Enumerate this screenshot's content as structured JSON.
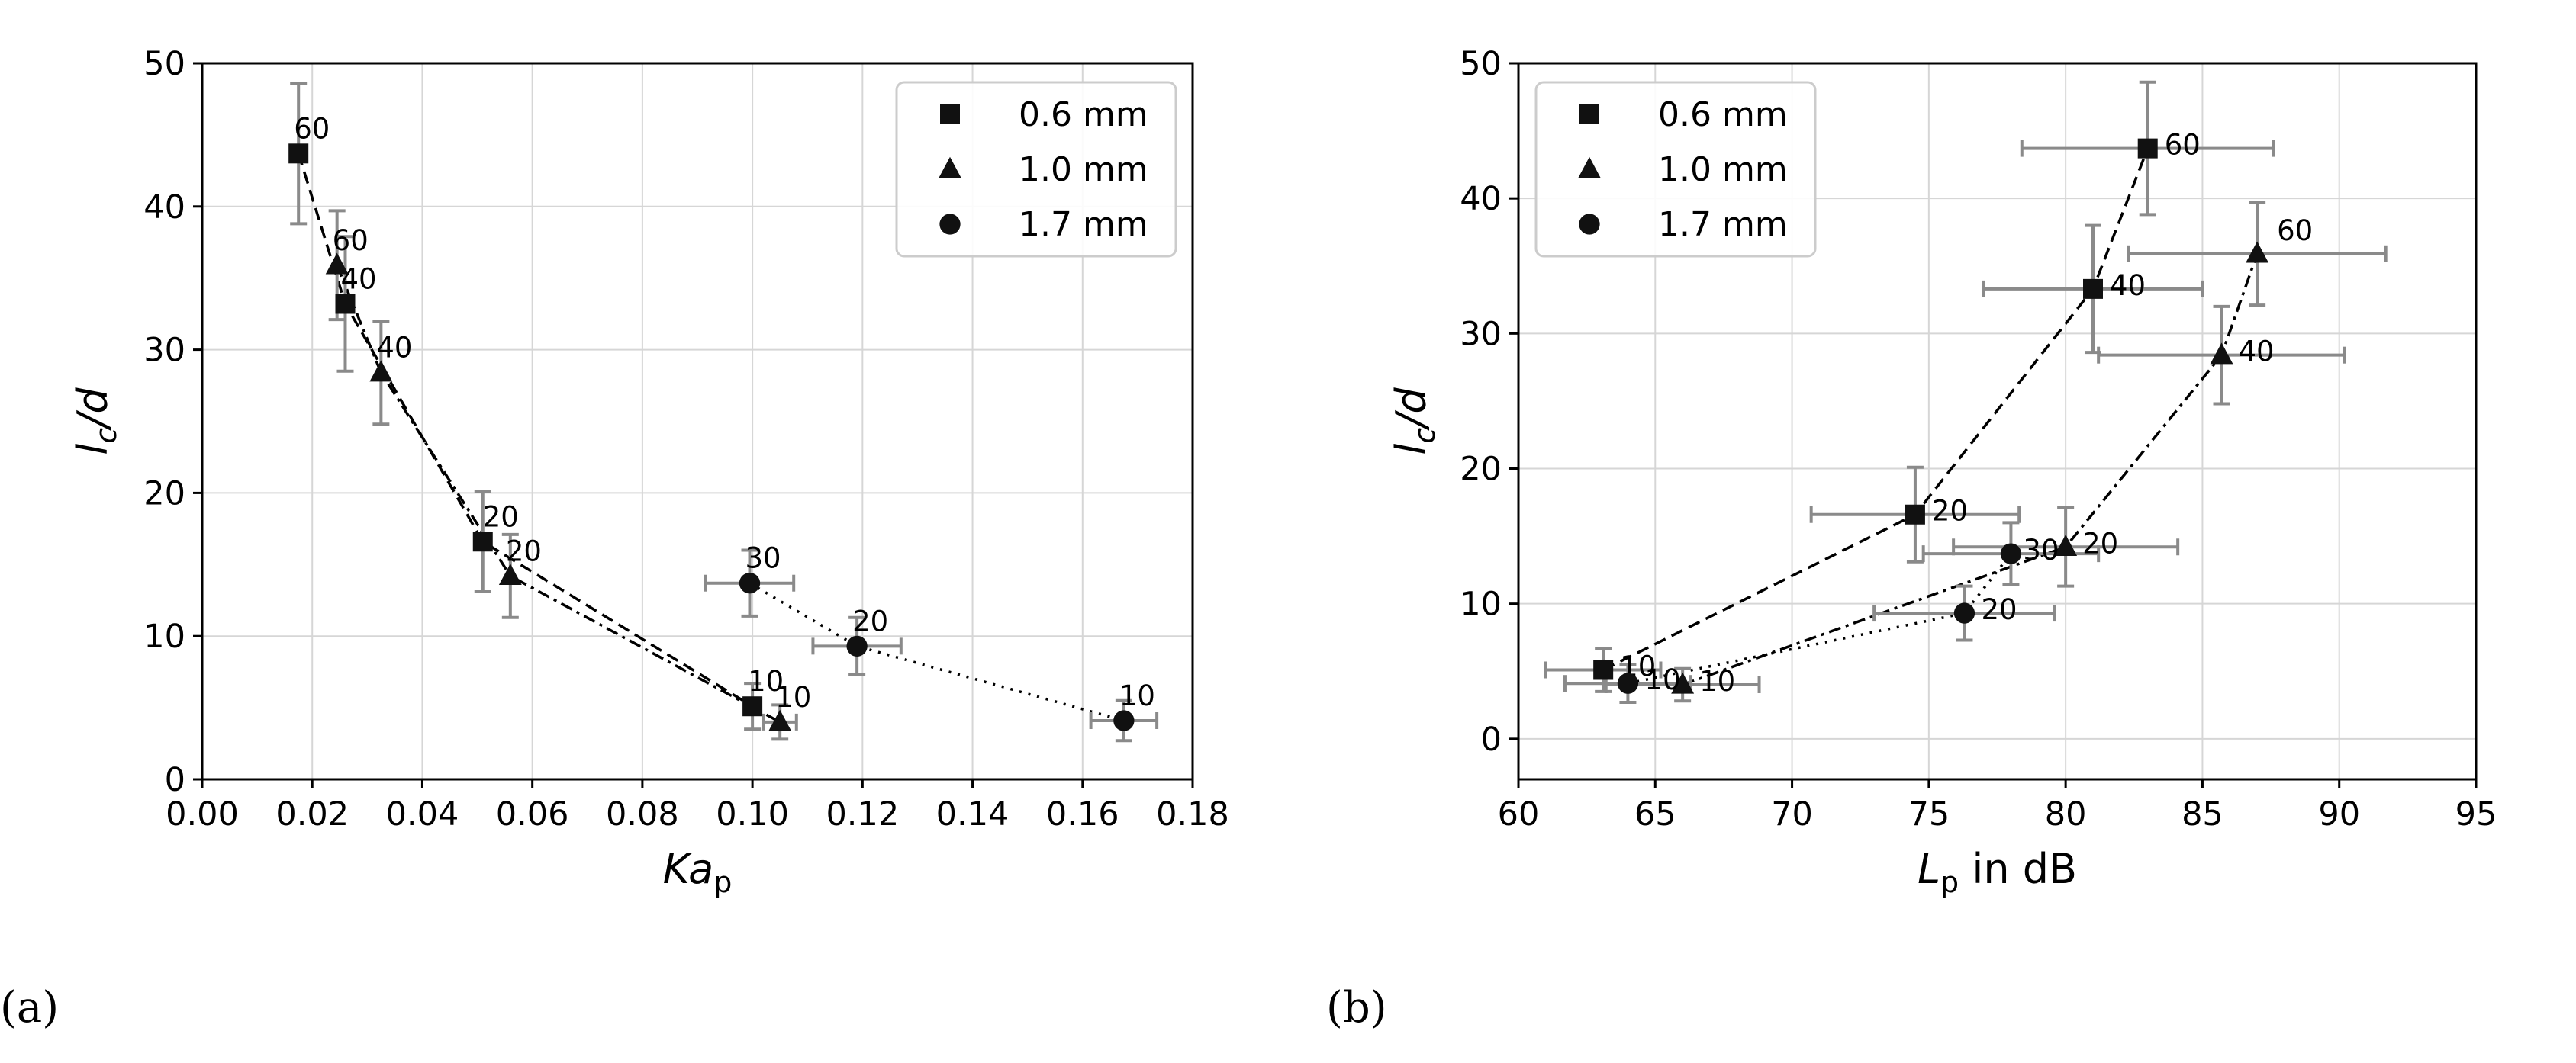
{
  "colors": {
    "marker": "#111111",
    "errorbar": "#8a8a8a",
    "grid": "#d6d6d6",
    "line": "#000000"
  },
  "marker_icons": {
    "0.6 mm": "square-icon",
    "1.0 mm": "triangle-icon",
    "1.7 mm": "circle-icon"
  },
  "chart_data": [
    {
      "panel_label": "(a)",
      "type": "scatter",
      "title": "",
      "xlabel": "Ka_p",
      "ylabel": "l_c/d",
      "xlim": [
        0,
        0.18
      ],
      "ylim": [
        0,
        50
      ],
      "xticks": [
        0,
        0.02,
        0.04,
        0.06,
        0.08,
        0.1,
        0.12,
        0.14,
        0.16,
        0.18
      ],
      "xtick_labels": [
        "0.00",
        "0.02",
        "0.04",
        "0.06",
        "0.08",
        "0.10",
        "0.12",
        "0.14",
        "0.16",
        "0.18"
      ],
      "yticks": [
        0,
        10,
        20,
        30,
        40,
        50
      ],
      "ytick_labels": [
        "0",
        "10",
        "20",
        "30",
        "40",
        "50"
      ],
      "grid": true,
      "legend": {
        "placement": "top-right",
        "entries": [
          "0.6 mm",
          "1.0 mm",
          "1.7 mm"
        ]
      },
      "series": [
        {
          "name": "0.6 mm",
          "marker": "square",
          "linestyle": "dashed",
          "points": [
            {
              "x": 0.0175,
              "y": 43.7,
              "yerr": 4.9,
              "xerr": 0,
              "label": "60"
            },
            {
              "x": 0.026,
              "y": 33.2,
              "yerr": 4.7,
              "xerr": 0,
              "label": "40"
            },
            {
              "x": 0.051,
              "y": 16.6,
              "yerr": 3.5,
              "xerr": 0,
              "label": "20"
            },
            {
              "x": 0.1,
              "y": 5.1,
              "yerr": 1.6,
              "xerr": 0,
              "label": "10"
            }
          ]
        },
        {
          "name": "1.0 mm",
          "marker": "triangle",
          "linestyle": "dashdot",
          "points": [
            {
              "x": 0.0245,
              "y": 35.9,
              "yerr": 3.8,
              "xerr": 0,
              "label": "60"
            },
            {
              "x": 0.0325,
              "y": 28.4,
              "yerr": 3.6,
              "xerr": 0,
              "label": "40"
            },
            {
              "x": 0.056,
              "y": 14.2,
              "yerr": 2.9,
              "xerr": 0,
              "label": "20"
            },
            {
              "x": 0.105,
              "y": 4.0,
              "yerr": 1.2,
              "xerr": 0.003,
              "label": "10"
            }
          ]
        },
        {
          "name": "1.7 mm",
          "marker": "circle",
          "linestyle": "dotted",
          "points": [
            {
              "x": 0.0995,
              "y": 13.7,
              "yerr": 2.3,
              "xerr": 0.008,
              "label": "30"
            },
            {
              "x": 0.119,
              "y": 9.3,
              "yerr": 2.0,
              "xerr": 0.008,
              "label": "20"
            },
            {
              "x": 0.1675,
              "y": 4.1,
              "yerr": 1.4,
              "xerr": 0.006,
              "label": "10"
            }
          ]
        }
      ]
    },
    {
      "panel_label": "(b)",
      "type": "scatter",
      "title": "",
      "xlabel": "L_p in dB",
      "ylabel": "l_c/d",
      "xlim": [
        60,
        95
      ],
      "ylim": [
        -3,
        50
      ],
      "xticks": [
        60,
        65,
        70,
        75,
        80,
        85,
        90,
        95
      ],
      "xtick_labels": [
        "60",
        "65",
        "70",
        "75",
        "80",
        "85",
        "90",
        "95"
      ],
      "yticks": [
        0,
        10,
        20,
        30,
        40,
        50
      ],
      "ytick_labels": [
        "0",
        "10",
        "20",
        "30",
        "40",
        "50"
      ],
      "grid": true,
      "legend": {
        "placement": "top-left",
        "entries": [
          "0.6 mm",
          "1.0 mm",
          "1.7 mm"
        ]
      },
      "series": [
        {
          "name": "0.6 mm",
          "marker": "square",
          "linestyle": "dashed",
          "points": [
            {
              "x": 63.1,
              "y": 5.1,
              "yerr": 1.6,
              "xerr": 2.1,
              "label": "10"
            },
            {
              "x": 74.5,
              "y": 16.6,
              "yerr": 3.5,
              "xerr": 3.8,
              "label": "20"
            },
            {
              "x": 81.0,
              "y": 33.3,
              "yerr": 4.7,
              "xerr": 4.0,
              "label": "40"
            },
            {
              "x": 83.0,
              "y": 43.7,
              "yerr": 4.9,
              "xerr": 4.6,
              "label": "60"
            }
          ]
        },
        {
          "name": "1.0 mm",
          "marker": "triangle",
          "linestyle": "dashdot",
          "points": [
            {
              "x": 66.0,
              "y": 4.0,
              "yerr": 1.2,
              "xerr": 2.8,
              "label": "10"
            },
            {
              "x": 80.0,
              "y": 14.2,
              "yerr": 2.9,
              "xerr": 4.1,
              "label": "20"
            },
            {
              "x": 85.7,
              "y": 28.4,
              "yerr": 3.6,
              "xerr": 4.5,
              "label": "40"
            },
            {
              "x": 87.0,
              "y": 35.9,
              "yerr": 3.8,
              "xerr": 4.7,
              "label": "60"
            }
          ]
        },
        {
          "name": "1.7 mm",
          "marker": "circle",
          "linestyle": "dotted",
          "points": [
            {
              "x": 64.0,
              "y": 4.1,
              "yerr": 1.4,
              "xerr": 2.3,
              "label": "10"
            },
            {
              "x": 76.3,
              "y": 9.3,
              "yerr": 2.0,
              "xerr": 3.3,
              "label": "20"
            },
            {
              "x": 78.0,
              "y": 13.7,
              "yerr": 2.3,
              "xerr": 3.2,
              "label": "30"
            }
          ]
        }
      ]
    }
  ]
}
